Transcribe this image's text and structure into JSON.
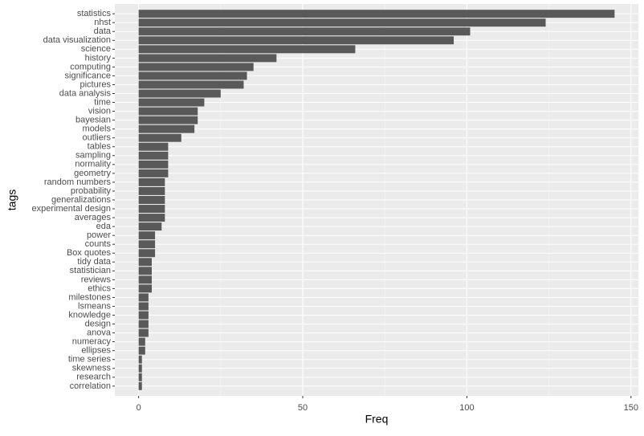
{
  "chart_data": {
    "type": "barh",
    "x_label": "Freq",
    "y_label": "tags",
    "categories": [
      "statistics",
      "nhst",
      "data",
      "data visualization",
      "science",
      "history",
      "computing",
      "significance",
      "pictures",
      "data analysis",
      "time",
      "vision",
      "bayesian",
      "models",
      "outliers",
      "tables",
      "sampling",
      "normality",
      "geometry",
      "random numbers",
      "probability",
      "generalizations",
      "experimental design",
      "averages",
      "eda",
      "power",
      "counts",
      "Box quotes",
      "tidy data",
      "statistician",
      "reviews",
      "ethics",
      "milestones",
      "lsmeans",
      "knowledge",
      "design",
      "anova",
      "numeracy",
      "ellipses",
      "time series",
      "skewness",
      "research",
      "correlation"
    ],
    "values": [
      145,
      124,
      101,
      96,
      66,
      42,
      35,
      33,
      32,
      25,
      20,
      18,
      18,
      17,
      13,
      9,
      9,
      9,
      9,
      8,
      8,
      8,
      8,
      8,
      7,
      5,
      5,
      5,
      4,
      4,
      4,
      4,
      3,
      3,
      3,
      3,
      3,
      2,
      2,
      1,
      1,
      1,
      1
    ],
    "color": "#595959",
    "xlim": [
      -7.25,
      152.25
    ],
    "xticks": [
      0,
      50,
      100,
      150
    ],
    "minor_xticks": [
      25,
      75,
      125
    ],
    "grid": true
  }
}
